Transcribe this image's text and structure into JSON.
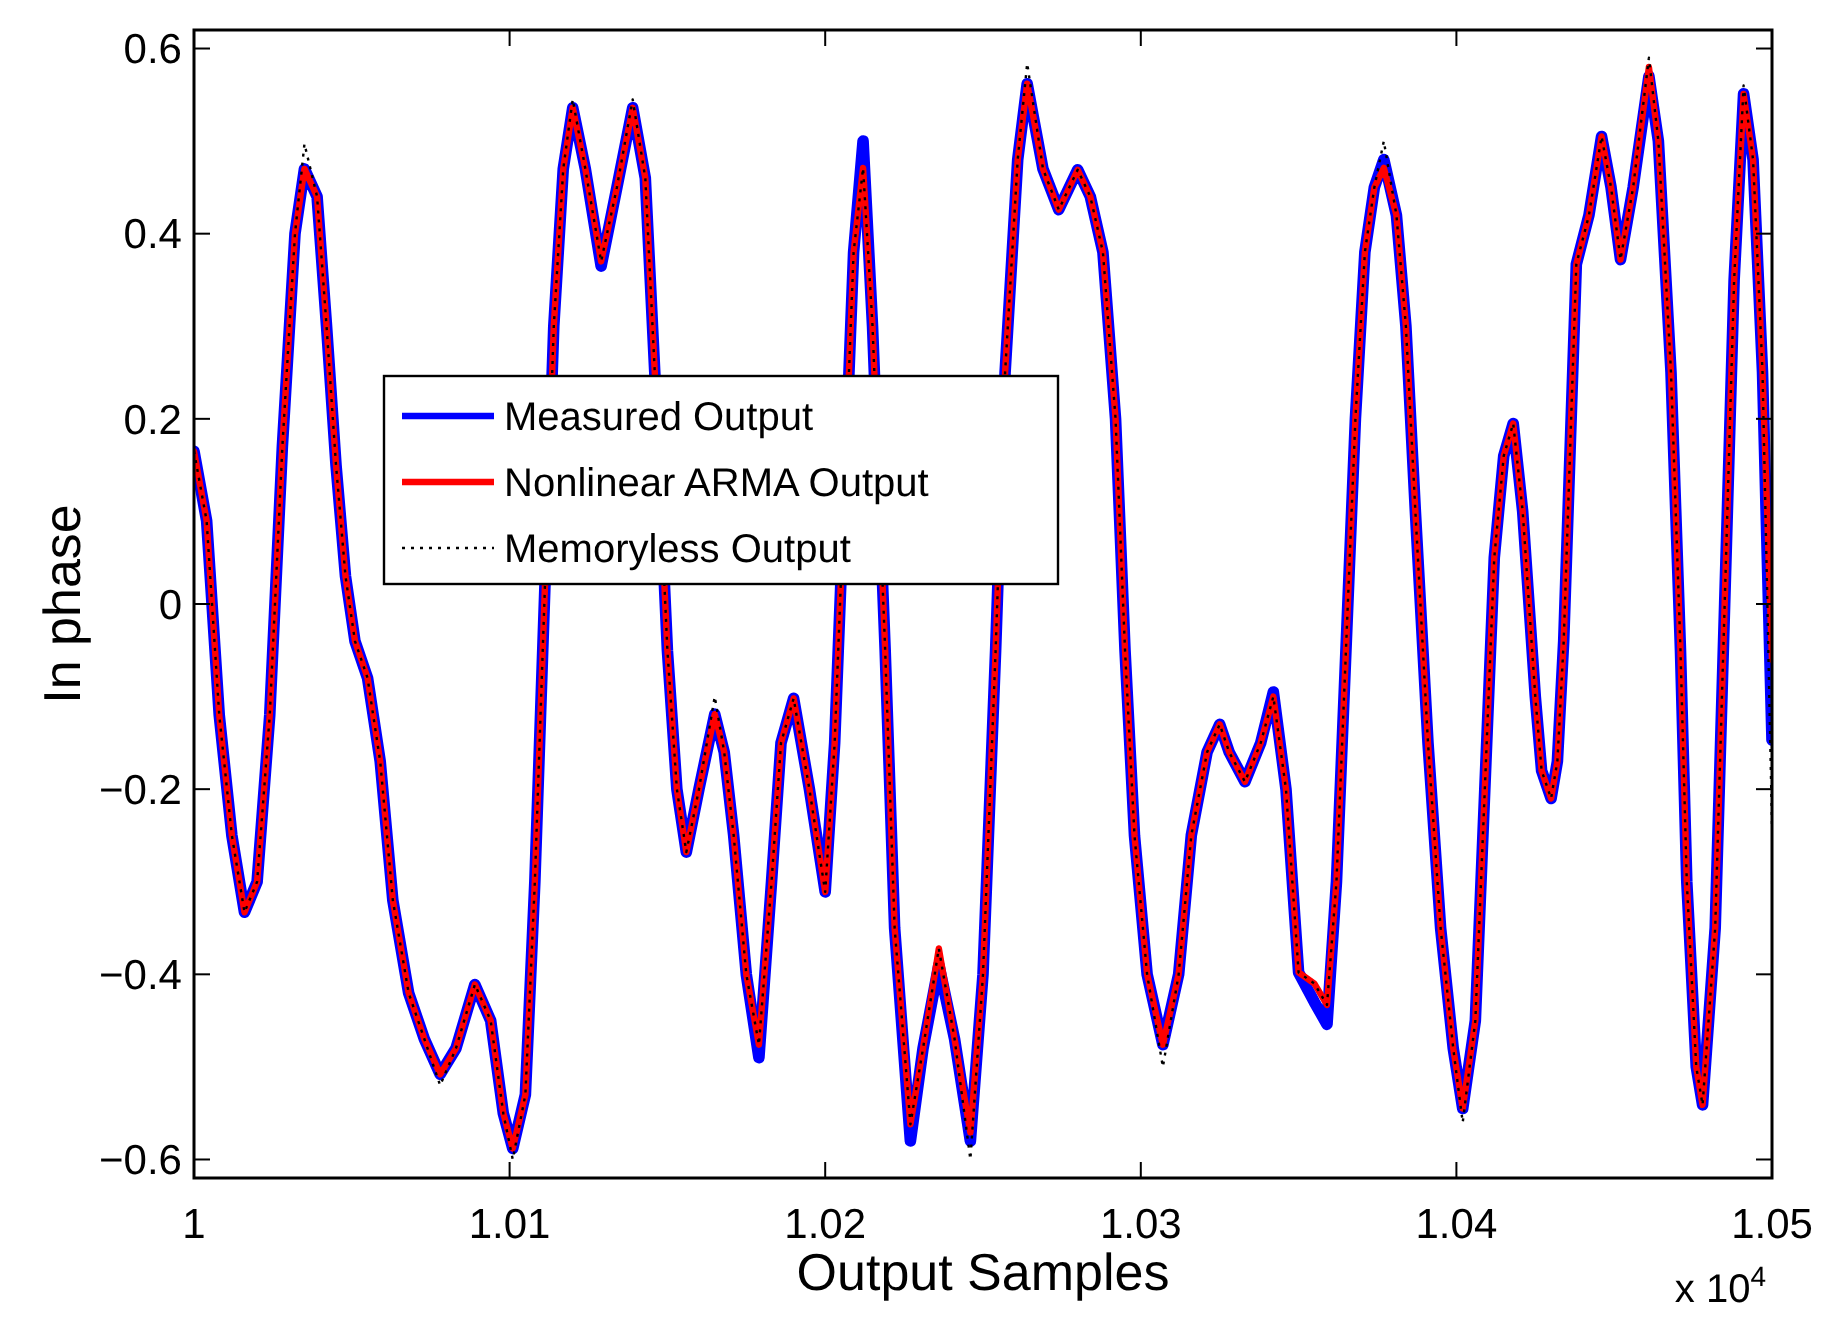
{
  "chart_data": {
    "type": "line",
    "xlabel": "Output Samples",
    "ylabel": "In phase",
    "annotations": [
      "x 10$^{4}$"
    ],
    "xlim": [
      1,
      1.05
    ],
    "ylim": [
      -0.62,
      0.62
    ],
    "xticks": [
      1,
      1.01,
      1.02,
      1.03,
      1.04,
      1.05
    ],
    "yticks": [
      {
        "value": -0.6,
        "label": "−0.6"
      },
      {
        "value": -0.4,
        "label": "−0.4"
      },
      {
        "value": -0.2,
        "label": "−0.2"
      },
      0,
      0.2,
      0.4,
      0.6
    ],
    "grid": false,
    "legend": "top left",
    "marker": "none",
    "x": [
      1.0,
      1.0004,
      1.0008,
      1.0012,
      1.0016,
      1.002,
      1.0024,
      1.0028,
      1.0032,
      1.0035,
      1.0039,
      1.0042,
      1.0045,
      1.0048,
      1.0051,
      1.0055,
      1.0059,
      1.0063,
      1.0068,
      1.0073,
      1.0078,
      1.0083,
      1.0089,
      1.0094,
      1.0098,
      1.0101,
      1.0105,
      1.0108,
      1.0111,
      1.0114,
      1.0117,
      1.012,
      1.0124,
      1.0129,
      1.0134,
      1.0139,
      1.0143,
      1.0146,
      1.015,
      1.0153,
      1.0156,
      1.016,
      1.0165,
      1.0168,
      1.0171,
      1.0175,
      1.0179,
      1.0183,
      1.0186,
      1.019,
      1.0195,
      1.02,
      1.0203,
      1.0206,
      1.0209,
      1.0212,
      1.0215,
      1.0219,
      1.0222,
      1.0227,
      1.0231,
      1.0236,
      1.0241,
      1.0246,
      1.025,
      1.0254,
      1.0257,
      1.0261,
      1.0264,
      1.0269,
      1.0274,
      1.028,
      1.0284,
      1.0288,
      1.0292,
      1.0295,
      1.0298,
      1.0302,
      1.0307,
      1.0312,
      1.0316,
      1.0321,
      1.0325,
      1.0328,
      1.0333,
      1.0338,
      1.0342,
      1.0346,
      1.035,
      1.0355,
      1.0359,
      1.0362,
      1.0365,
      1.0368,
      1.0371,
      1.0374,
      1.0377,
      1.0381,
      1.0384,
      1.0387,
      1.0391,
      1.0395,
      1.0399,
      1.0402,
      1.0406,
      1.0409,
      1.0412,
      1.0415,
      1.0418,
      1.0421,
      1.0425,
      1.0427,
      1.043,
      1.0432,
      1.0434,
      1.0438,
      1.0442,
      1.0446,
      1.0449,
      1.0452,
      1.0456,
      1.0461,
      1.0464,
      1.0468,
      1.0471,
      1.0473,
      1.0476,
      1.0478,
      1.0482,
      1.0485,
      1.0488,
      1.0491,
      1.0494,
      1.0497,
      1.05
    ],
    "series": [
      {
        "name": "Measured Output",
        "color": "#0000ff",
        "line_style": "solid",
        "values": [
          0.165,
          0.09,
          -0.12,
          -0.25,
          -0.333,
          -0.3,
          -0.12,
          0.17,
          0.4,
          0.47,
          0.44,
          0.3,
          0.15,
          0.03,
          -0.04,
          -0.08,
          -0.17,
          -0.32,
          -0.42,
          -0.47,
          -0.508,
          -0.48,
          -0.411,
          -0.45,
          -0.55,
          -0.588,
          -0.53,
          -0.3,
          null,
          0.3,
          0.47,
          0.536,
          0.47,
          0.365,
          0.45,
          0.536,
          0.46,
          0.25,
          -0.05,
          -0.2,
          -0.268,
          -0.2,
          -0.119,
          -0.16,
          -0.25,
          -0.4,
          -0.49,
          -0.3,
          -0.15,
          -0.102,
          -0.2,
          -0.311,
          -0.15,
          null,
          0.38,
          0.5,
          0.3,
          -0.05,
          -0.35,
          -0.58,
          -0.48,
          -0.39,
          -0.47,
          -0.58,
          -0.4,
          -0.05,
          0.25,
          0.48,
          0.562,
          0.47,
          0.426,
          0.469,
          0.44,
          0.38,
          0.2,
          -0.05,
          -0.25,
          -0.4,
          -0.476,
          -0.4,
          -0.25,
          -0.16,
          -0.13,
          -0.16,
          -0.192,
          -0.15,
          -0.095,
          -0.2,
          -0.398,
          -0.43,
          -0.454,
          -0.3,
          -0.05,
          0.2,
          0.38,
          0.45,
          0.48,
          0.42,
          0.3,
          0.1,
          -0.15,
          -0.35,
          -0.48,
          -0.545,
          -0.45,
          -0.2,
          0.05,
          0.16,
          0.195,
          0.1,
          -0.1,
          -0.18,
          -0.21,
          -0.17,
          -0.04,
          0.367,
          0.42,
          0.505,
          0.45,
          0.372,
          0.45,
          0.57,
          0.5,
          0.25,
          -0.05,
          -0.3,
          -0.5,
          -0.541,
          -0.35,
          0.0,
          0.35,
          0.551,
          0.48,
          0.25,
          -0.147
        ]
      },
      {
        "name": "Nonlinear ARMA Output",
        "color": "#ff0000",
        "line_style": "solid",
        "values": [
          0.165,
          0.09,
          -0.12,
          -0.25,
          -0.333,
          -0.3,
          -0.12,
          0.17,
          0.4,
          0.47,
          0.44,
          0.3,
          0.15,
          0.03,
          -0.04,
          -0.08,
          -0.17,
          -0.32,
          -0.42,
          -0.47,
          -0.508,
          -0.48,
          -0.411,
          -0.45,
          -0.55,
          -0.588,
          -0.53,
          -0.3,
          null,
          0.3,
          0.47,
          0.536,
          0.47,
          0.37,
          0.45,
          0.536,
          0.46,
          0.25,
          -0.05,
          -0.2,
          -0.268,
          -0.2,
          -0.119,
          -0.16,
          -0.25,
          -0.4,
          -0.476,
          -0.3,
          -0.15,
          -0.102,
          -0.2,
          -0.311,
          -0.15,
          null,
          0.38,
          0.471,
          0.3,
          -0.05,
          -0.35,
          -0.562,
          -0.48,
          -0.372,
          -0.47,
          -0.571,
          -0.4,
          -0.05,
          0.25,
          0.48,
          0.562,
          0.47,
          0.426,
          0.469,
          0.44,
          0.38,
          0.2,
          -0.05,
          -0.25,
          -0.4,
          -0.476,
          -0.4,
          -0.25,
          -0.16,
          -0.13,
          -0.16,
          -0.192,
          -0.15,
          -0.1,
          -0.2,
          -0.398,
          -0.41,
          -0.433,
          -0.3,
          -0.05,
          0.2,
          0.38,
          0.45,
          0.471,
          0.42,
          0.3,
          0.1,
          -0.15,
          -0.35,
          -0.48,
          -0.545,
          -0.45,
          -0.2,
          0.05,
          0.16,
          0.195,
          0.1,
          -0.1,
          -0.18,
          -0.21,
          -0.17,
          -0.04,
          0.367,
          0.42,
          0.505,
          0.45,
          0.372,
          0.45,
          0.58,
          0.5,
          0.25,
          -0.05,
          -0.3,
          -0.5,
          -0.541,
          -0.35,
          0.0,
          0.35,
          0.551,
          0.48,
          0.25,
          -0.06
        ]
      },
      {
        "name": "Memoryless Output",
        "color": "#000000",
        "line_style": "dotted",
        "values": [
          0.165,
          0.09,
          -0.12,
          -0.25,
          -0.333,
          -0.3,
          -0.12,
          0.17,
          0.4,
          0.497,
          0.44,
          0.3,
          0.15,
          0.03,
          -0.04,
          -0.08,
          -0.17,
          -0.32,
          -0.42,
          -0.47,
          -0.52,
          -0.48,
          -0.411,
          -0.45,
          -0.55,
          -0.6,
          -0.53,
          -0.3,
          null,
          0.3,
          0.47,
          0.545,
          0.47,
          0.37,
          0.45,
          0.545,
          0.46,
          0.25,
          -0.05,
          -0.2,
          -0.268,
          -0.2,
          -0.1,
          -0.16,
          -0.25,
          -0.4,
          -0.476,
          -0.3,
          -0.15,
          -0.102,
          -0.2,
          -0.311,
          -0.15,
          null,
          0.38,
          0.471,
          0.3,
          -0.05,
          -0.35,
          -0.562,
          -0.48,
          -0.372,
          -0.47,
          -0.6,
          -0.4,
          -0.05,
          0.25,
          0.48,
          0.584,
          0.47,
          0.426,
          0.469,
          0.44,
          0.38,
          0.2,
          -0.05,
          -0.25,
          -0.4,
          -0.5,
          -0.4,
          -0.25,
          -0.16,
          -0.13,
          -0.16,
          -0.192,
          -0.15,
          -0.1,
          -0.2,
          -0.398,
          -0.41,
          -0.433,
          -0.3,
          -0.05,
          0.2,
          0.38,
          0.45,
          0.5,
          0.42,
          0.3,
          0.1,
          -0.15,
          -0.35,
          -0.48,
          -0.56,
          -0.45,
          -0.2,
          0.05,
          0.16,
          0.195,
          0.1,
          -0.1,
          -0.18,
          -0.21,
          -0.17,
          -0.04,
          0.367,
          0.42,
          0.505,
          0.45,
          0.372,
          0.45,
          0.59,
          0.5,
          0.25,
          -0.05,
          -0.3,
          -0.5,
          -0.541,
          -0.35,
          0.0,
          0.35,
          0.56,
          0.48,
          0.25,
          -0.24
        ]
      }
    ]
  }
}
